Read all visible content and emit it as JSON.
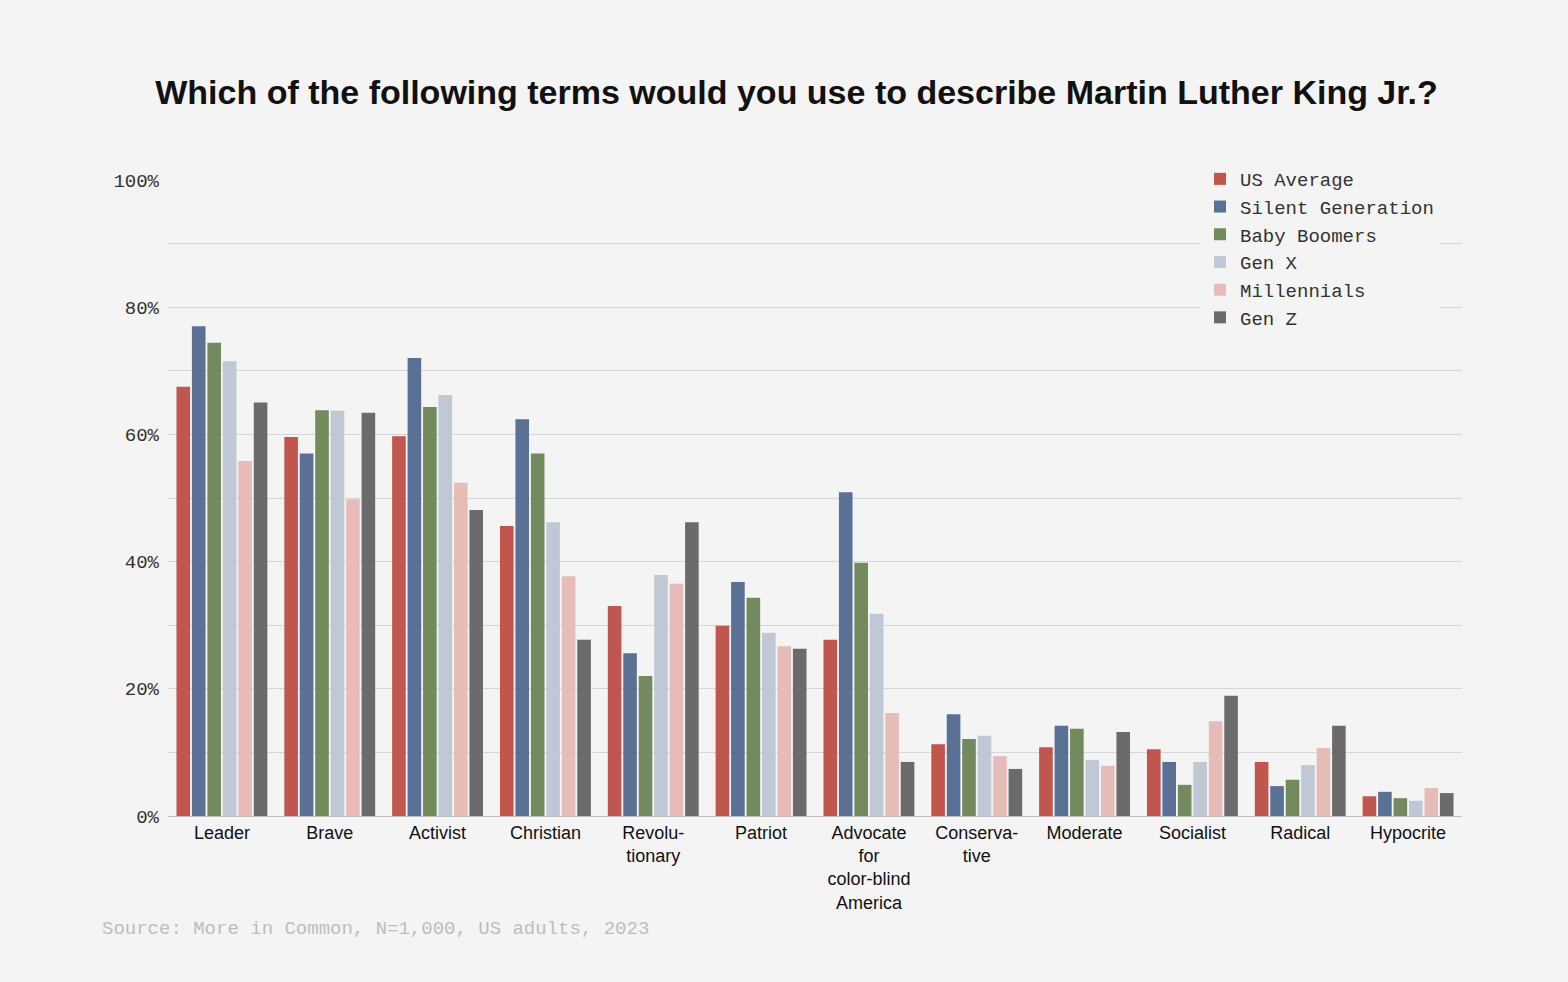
{
  "chart_data": {
    "type": "bar",
    "title": "Which of the following terms would you use to describe Martin Luther King Jr.?",
    "source": "Source: More in Common, N=1,000, US adults, 2023",
    "categories": [
      "Leader",
      "Brave",
      "Activist",
      "Christian",
      "Revolu-\ntionary",
      "Patriot",
      "Advocate\nfor\ncolor-blind\nAmerica",
      "Conserva-\ntive",
      "Moderate",
      "Socialist",
      "Radical",
      "Hypocrite"
    ],
    "series": [
      {
        "name": "US Average",
        "color": "#c0564e",
        "values": [
          67.5,
          59.6,
          59.7,
          45.6,
          33,
          29.9,
          27.7,
          11.3,
          10.8,
          10.5,
          8.5,
          3.1
        ]
      },
      {
        "name": "Silent Generation",
        "color": "#5a7094",
        "values": [
          77,
          57,
          72,
          62.4,
          25.6,
          36.8,
          50.9,
          16,
          14.2,
          8.5,
          4.7,
          3.8
        ]
      },
      {
        "name": "Baby Boomers",
        "color": "#738a5e",
        "values": [
          74.4,
          63.8,
          64.3,
          57,
          22,
          34.3,
          39.8,
          12.1,
          13.7,
          4.9,
          5.7,
          2.8
        ]
      },
      {
        "name": "Gen X",
        "color": "#bfc8d4",
        "values": [
          71.5,
          63.7,
          66.2,
          46.2,
          37.9,
          28.8,
          31.8,
          12.6,
          8.8,
          8.5,
          8,
          2.4
        ]
      },
      {
        "name": "Millennials",
        "color": "#e6bcb9",
        "values": [
          55.8,
          49.8,
          52.4,
          37.7,
          36.5,
          26.7,
          16.2,
          9.4,
          7.9,
          14.9,
          10.7,
          4.4
        ]
      },
      {
        "name": "Gen Z",
        "color": "#6b6b6b",
        "values": [
          65,
          63.4,
          48.1,
          27.7,
          46.2,
          26.3,
          8.5,
          7.4,
          13.2,
          18.9,
          14.2,
          3.6
        ]
      }
    ],
    "ylim": [
      0,
      100
    ],
    "yticks": [
      {
        "value": 0,
        "label": "0%"
      },
      {
        "value": 20,
        "label": "20%"
      },
      {
        "value": 40,
        "label": "40%"
      },
      {
        "value": 60,
        "label": "60%"
      },
      {
        "value": 80,
        "label": "80%"
      },
      {
        "value": 100,
        "label": "100%"
      }
    ],
    "grid": true,
    "legend": "top right"
  }
}
